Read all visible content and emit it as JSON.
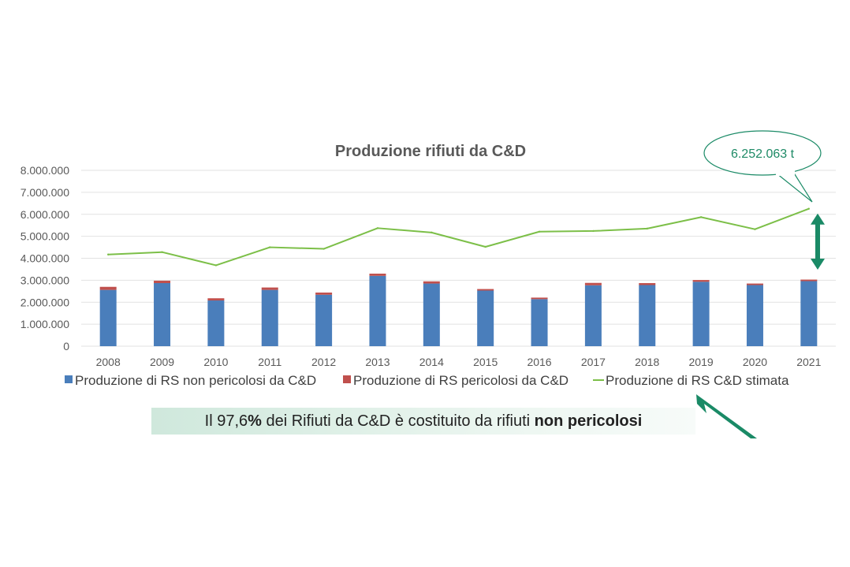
{
  "chart_data": {
    "type": "bar",
    "title": "Produzione rifiuti da C&D",
    "categories": [
      "2008",
      "2009",
      "2010",
      "2011",
      "2012",
      "2013",
      "2014",
      "2015",
      "2016",
      "2017",
      "2018",
      "2019",
      "2020",
      "2021"
    ],
    "stacked": true,
    "series": [
      {
        "name": "Produzione di RS non pericolosi da C&D",
        "kind": "bar",
        "color": "#4a7ebb",
        "values": [
          2560000,
          2870000,
          2080000,
          2560000,
          2340000,
          3200000,
          2850000,
          2530000,
          2140000,
          2770000,
          2780000,
          2930000,
          2780000,
          2960000
        ]
      },
      {
        "name": "Produzione di RS pericolosi da C&D",
        "kind": "bar",
        "color": "#c0504d",
        "values": [
          140000,
          110000,
          100000,
          110000,
          100000,
          100000,
          100000,
          70000,
          70000,
          110000,
          90000,
          80000,
          70000,
          70000
        ]
      },
      {
        "name": "Produzione di RS C&D stimata",
        "kind": "line",
        "color": "#7cbf48",
        "values": [
          4170000,
          4280000,
          3680000,
          4500000,
          4430000,
          5370000,
          5170000,
          4520000,
          5210000,
          5240000,
          5350000,
          5870000,
          5320000,
          6252063
        ]
      }
    ],
    "y_ticks": [
      "0",
      "1.000.000",
      "2.000.000",
      "3.000.000",
      "4.000.000",
      "5.000.000",
      "6.000.000",
      "7.000.000",
      "8.000.000"
    ],
    "ylim": [
      0,
      8000000
    ],
    "grid": true,
    "legend_position": "bottom",
    "callout": "6.252.063 t",
    "arrow_color": "#1a8a66"
  },
  "note": {
    "prefix": "Il 97,6",
    "percent": "%",
    "middle": " dei Rifiuti da C&D è costituito da rifiuti ",
    "bold": "non pericolosi"
  }
}
